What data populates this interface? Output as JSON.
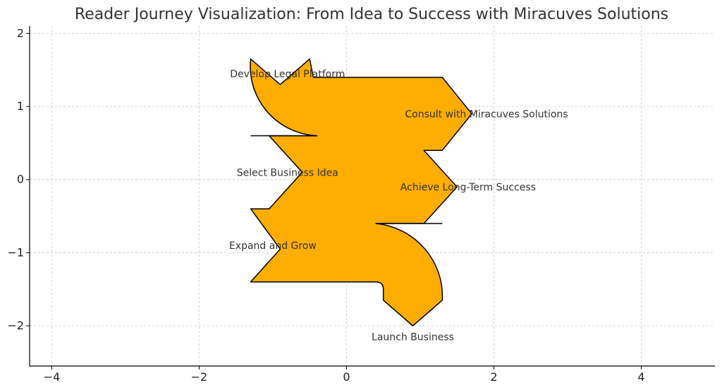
{
  "chart_data": {
    "type": "other",
    "title": "Reader Journey Visualization: From Idea to Success with Miracuves Solutions",
    "xlim": [
      -4.3,
      5.0
    ],
    "ylim": [
      -2.55,
      2.1
    ],
    "x_ticks": [
      -4,
      -2,
      0,
      2,
      4
    ],
    "y_ticks": [
      -2,
      -1,
      0,
      1,
      2
    ],
    "x_tick_labels": [
      "−4",
      "−2",
      "0",
      "2",
      "4"
    ],
    "y_tick_labels": [
      "−2",
      "−1",
      "0",
      "1",
      "2"
    ],
    "grid": true,
    "fill_color": "#FFAD00",
    "edge_color": "#000000",
    "steps": [
      {
        "label": "Select Business Idea",
        "x": -0.8,
        "y": 0.1
      },
      {
        "label": "Develop Legal Platform",
        "x": -0.8,
        "y": 1.45
      },
      {
        "label": "Consult with Miracuves Solutions",
        "x": 1.9,
        "y": 0.9
      },
      {
        "label": "Achieve Long-Term Success",
        "x": 1.65,
        "y": -0.1
      },
      {
        "label": "Launch Business",
        "x": 0.9,
        "y": -2.15
      },
      {
        "label": "Expand and Grow",
        "x": -1.0,
        "y": -0.9
      }
    ]
  }
}
